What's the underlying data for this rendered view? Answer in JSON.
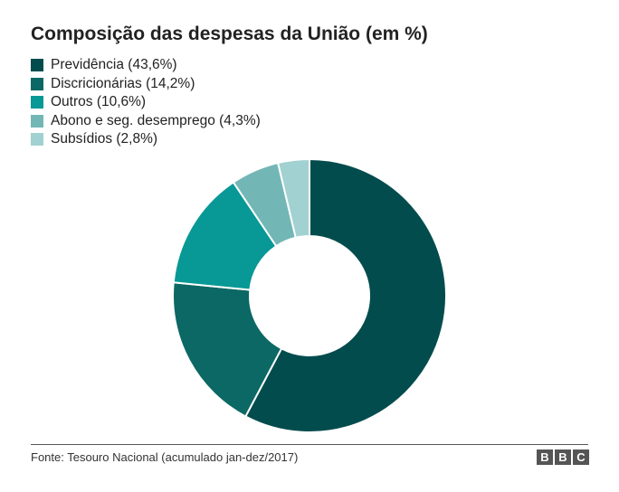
{
  "chart_data": {
    "type": "pie",
    "title": "Composição das despesas da União (em %)",
    "legend_placement": "top-left",
    "donut": true,
    "series": [
      {
        "name": "Previdência (43,6%)",
        "value": 43.6,
        "color": "#034c4e"
      },
      {
        "name": "Discricionárias (14,2%)",
        "value": 14.2,
        "color": "#0c6864"
      },
      {
        "name": "Outros (10,6%)",
        "value": 10.6,
        "color": "#089896"
      },
      {
        "name": "Abono e seg. desemprego (4,3%)",
        "value": 4.3,
        "color": "#73b6b6"
      },
      {
        "name": "Subsídios (2,8%)",
        "value": 2.8,
        "color": "#a2d1d1"
      }
    ]
  },
  "source": "Fonte: Tesouro Nacional (acumulado jan-dez/2017)",
  "logo": {
    "letters": [
      "B",
      "B",
      "C"
    ]
  }
}
